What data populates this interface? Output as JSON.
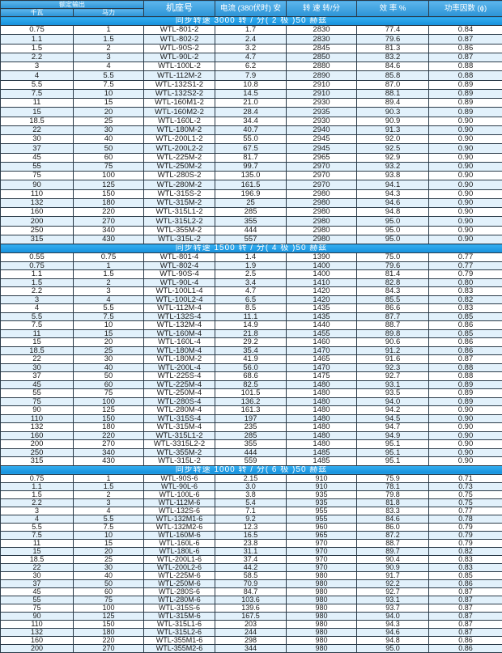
{
  "header": {
    "rated_output": "额定输出",
    "kw": "千瓦",
    "hp": "马力",
    "model": "机座号",
    "current": "电流 (380伏时) 安",
    "speed": "转 速 转/分",
    "efficiency": "效 率 %",
    "power_factor": "功率因数 (ϕ)"
  },
  "colors": {
    "header": "#2b93d6",
    "section": "#1ea0e8",
    "alt_row": "#e2f1fb"
  },
  "sections": [
    {
      "title": "同步转速 3000 转 / 分( 2 极 )50 赫兹",
      "rows": [
        [
          "0.75",
          "1",
          "WTL-801-2",
          "1.7",
          "2830",
          "77.4",
          "0.84"
        ],
        [
          "1.1",
          "1.5",
          "WTL-802-2",
          "2.4",
          "2830",
          "79.6",
          "0.87"
        ],
        [
          "1.5",
          "2",
          "WTL-90S-2",
          "3.2",
          "2845",
          "81.3",
          "0.86"
        ],
        [
          "2.2",
          "3",
          "WTL-90L-2",
          "4.7",
          "2850",
          "83.2",
          "0.87"
        ],
        [
          "3",
          "4",
          "WTL-100L-2",
          "6.2",
          "2880",
          "84.6",
          "0.88"
        ],
        [
          "4",
          "5.5",
          "WTL-112M-2",
          "7.9",
          "2890",
          "85.8",
          "0.88"
        ],
        [
          "5.5",
          "7.5",
          "WTL-132S1-2",
          "10.8",
          "2910",
          "87.0",
          "0.89"
        ],
        [
          "7.5",
          "10",
          "WTL-132S2-2",
          "14.5",
          "2910",
          "88.1",
          "0.89"
        ],
        [
          "11",
          "15",
          "WTL-160M1-2",
          "21.0",
          "2930",
          "89.4",
          "0.89"
        ],
        [
          "15",
          "20",
          "WTL-160M2-2",
          "28.4",
          "2935",
          "90.3",
          "0.89"
        ],
        [
          "18.5",
          "25",
          "WTL-160L-2",
          "34.4",
          "2930",
          "90.9",
          "0.90"
        ],
        [
          "22",
          "30",
          "WTL-180M-2",
          "40.7",
          "2940",
          "91.3",
          "0.90"
        ],
        [
          "30",
          "40",
          "WTL-200L1-2",
          "55.0",
          "2945",
          "92.0",
          "0.90"
        ],
        [
          "37",
          "50",
          "WTL-200L2-2",
          "67.5",
          "2945",
          "92.5",
          "0.90"
        ],
        [
          "45",
          "60",
          "WTL-225M-2",
          "81.7",
          "2965",
          "92.9",
          "0.90"
        ],
        [
          "55",
          "75",
          "WTL-250M-2",
          "99.7",
          "2970",
          "93.2",
          "0.90"
        ],
        [
          "75",
          "100",
          "WTL-280S-2",
          "135.0",
          "2970",
          "93.8",
          "0.90"
        ],
        [
          "90",
          "125",
          "WTL-280M-2",
          "161.5",
          "2970",
          "94.1",
          "0.90"
        ],
        [
          "110",
          "150",
          "WTL-315S-2",
          "196.9",
          "2980",
          "94.3",
          "0.90"
        ],
        [
          "132",
          "180",
          "WTL-315M-2",
          "25",
          "2980",
          "94.6",
          "0.90"
        ],
        [
          "160",
          "220",
          "WTL-315L1-2",
          "285",
          "2980",
          "94.8",
          "0.90"
        ],
        [
          "200",
          "270",
          "WTL-315L2-2",
          "355",
          "2980",
          "95.0",
          "0.90"
        ],
        [
          "250",
          "340",
          "WTL-355M-2",
          "444",
          "2980",
          "95.0",
          "0.90"
        ],
        [
          "315",
          "430",
          "WTL-315L-2",
          "557",
          "2980",
          "95.0",
          "0.90"
        ]
      ]
    },
    {
      "title": "同步转速 1500 转 / 分( 4 极 )50 赫兹",
      "rows": [
        [
          "0.55",
          "0.75",
          "WTL-801-4",
          "1.4",
          "1390",
          "75.0",
          "0.77"
        ],
        [
          "0.75",
          "1",
          "WTL-802-4",
          "1.9",
          "1400",
          "79.6",
          "0.77"
        ],
        [
          "1.1",
          "1.5",
          "WTL-90S-4",
          "2.5",
          "1400",
          "81.4",
          "0.79"
        ],
        [
          "1.5",
          "2",
          "WTL-90L-4",
          "3.4",
          "1410",
          "82.8",
          "0.80"
        ],
        [
          "2.2",
          "3",
          "WTL-100L1-4",
          "4.7",
          "1420",
          "84.3",
          "0.83"
        ],
        [
          "3",
          "4",
          "WTL-100L2-4",
          "6.5",
          "1420",
          "85.5",
          "0.82"
        ],
        [
          "4",
          "5.5",
          "WTL-112M-4",
          "8.5",
          "1435",
          "86.6",
          "0.83"
        ],
        [
          "5.5",
          "7.5",
          "WTL-132S-4",
          "11.1",
          "1435",
          "87.7",
          "0.85"
        ],
        [
          "7.5",
          "10",
          "WTL-132M-4",
          "14.9",
          "1440",
          "88.7",
          "0.86"
        ],
        [
          "11",
          "15",
          "WTL-160M-4",
          "21.8",
          "1455",
          "89.8",
          "0.85"
        ],
        [
          "15",
          "20",
          "WTL-160L-4",
          "29.2",
          "1460",
          "90.6",
          "0.86"
        ],
        [
          "18.5",
          "25",
          "WTL-180M-4",
          "35.4",
          "1470",
          "91.2",
          "0.86"
        ],
        [
          "22",
          "30",
          "WTL-180M-2",
          "41.9",
          "1465",
          "91.6",
          "0.87"
        ],
        [
          "30",
          "40",
          "WTL-200L-4",
          "56.0",
          "1470",
          "92.3",
          "0.88"
        ],
        [
          "37",
          "50",
          "WTL-225S-4",
          "68.6",
          "1475",
          "92.7",
          "0.88"
        ],
        [
          "45",
          "60",
          "WTL-225M-4",
          "82.5",
          "1480",
          "93.1",
          "0.89"
        ],
        [
          "55",
          "75",
          "WTL-250M-4",
          "101.5",
          "1480",
          "93.5",
          "0.89"
        ],
        [
          "75",
          "100",
          "WTL-280S-4",
          "136.2",
          "1480",
          "94.0",
          "0.89"
        ],
        [
          "90",
          "125",
          "WTL-280M-4",
          "161.3",
          "1480",
          "94.2",
          "0.90"
        ],
        [
          "110",
          "150",
          "WTL-315S-4",
          "197",
          "1480",
          "94.5",
          "0.90"
        ],
        [
          "132",
          "180",
          "WTL-315M-4",
          "235",
          "1480",
          "94.7",
          "0.90"
        ],
        [
          "160",
          "220",
          "WTL-315L1-2",
          "285",
          "1480",
          "94.9",
          "0.90"
        ],
        [
          "200",
          "270",
          "WTL-3315L2-2",
          "355",
          "1480",
          "95.1",
          "0.90"
        ],
        [
          "250",
          "340",
          "WTL-355M-2",
          "444",
          "1485",
          "95.1",
          "0.90"
        ],
        [
          "315",
          "430",
          "WTL-315L-2",
          "559",
          "1485",
          "95.1",
          "0.90"
        ]
      ]
    },
    {
      "title": "同步转速 1000 转 / 分( 6 极 )50 赫兹",
      "rows": [
        [
          "0.75",
          "1",
          "WTL-90S-6",
          "2.15",
          "910",
          "75.9",
          "0.71"
        ],
        [
          "1.1",
          "1.5",
          "WTL-90L-6",
          "3.0",
          "910",
          "78.1",
          "0.73"
        ],
        [
          "1.5",
          "2",
          "WTL-100L-6",
          "3.8",
          "935",
          "79.8",
          "0.75"
        ],
        [
          "2.2",
          "3",
          "WTL-112M-6",
          "5.4",
          "935",
          "81.8",
          "0.75"
        ],
        [
          "3",
          "4",
          "WTL-132S-6",
          "7.1",
          "955",
          "83.3",
          "0.77"
        ],
        [
          "4",
          "5.5",
          "WTL-132M1-6",
          "9.2",
          "955",
          "84.6",
          "0.78"
        ],
        [
          "5.5",
          "7.5",
          "WTL-132M2-6",
          "12.3",
          "960",
          "86.0",
          "0.79"
        ],
        [
          "7.5",
          "10",
          "WTL-160M-6",
          "16.5",
          "965",
          "87.2",
          "0.79"
        ],
        [
          "11",
          "15",
          "WTL-160L-6",
          "23.8",
          "970",
          "88.7",
          "0.79"
        ],
        [
          "15",
          "20",
          "WTL-180L-6",
          "31.1",
          "970",
          "89.7",
          "0.82"
        ],
        [
          "18.5",
          "25",
          "WTL-200L1-6",
          "37.4",
          "970",
          "90.4",
          "0.83"
        ],
        [
          "22",
          "30",
          "WTL-200L2-6",
          "44.2",
          "970",
          "90.9",
          "0.83"
        ],
        [
          "30",
          "40",
          "WTL-225M-6",
          "58.5",
          "980",
          "91.7",
          "0.85"
        ],
        [
          "37",
          "50",
          "WTL-250M-6",
          "70.9",
          "980",
          "92.2",
          "0.86"
        ],
        [
          "45",
          "60",
          "WTL-280S-6",
          "84.7",
          "980",
          "92.7",
          "0.87"
        ],
        [
          "55",
          "75",
          "WTL-280M-6",
          "103.6",
          "980",
          "93.1",
          "0.87"
        ],
        [
          "75",
          "100",
          "WTL-315S-6",
          "139.6",
          "980",
          "93.7",
          "0.87"
        ],
        [
          "90",
          "125",
          "WTL-315M-6",
          "167.5",
          "980",
          "94.0",
          "0.87"
        ],
        [
          "110",
          "150",
          "WTL-315L1-6",
          "203",
          "980",
          "94.3",
          "0.87"
        ],
        [
          "132",
          "180",
          "WTL-315L2-6",
          "244",
          "980",
          "94.6",
          "0.87"
        ],
        [
          "160",
          "220",
          "WTL-355M1-6",
          "298",
          "980",
          "94.8",
          "0.86"
        ],
        [
          "200",
          "270",
          "WTL-355M2-6",
          "344",
          "980",
          "95.0",
          "0.86"
        ]
      ]
    }
  ]
}
